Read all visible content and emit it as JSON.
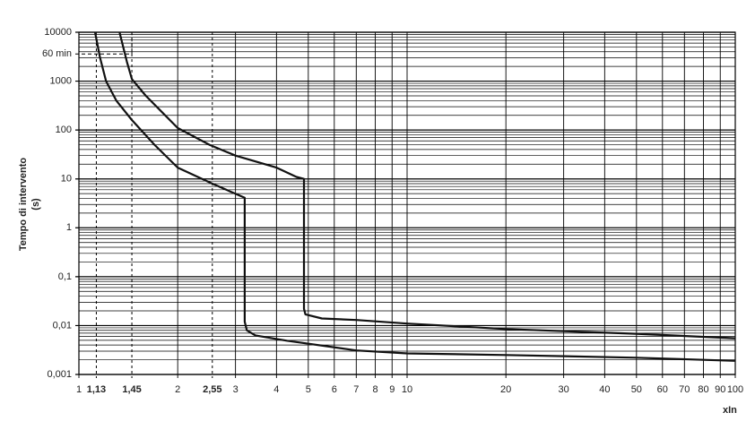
{
  "chart_data": {
    "type": "line",
    "xlabel": "xIn",
    "ylabel": [
      "Tempo di intervento",
      "(s)"
    ],
    "xscale": "log",
    "yscale": "log",
    "grid": true,
    "xlim": [
      1,
      100
    ],
    "ylim": [
      0.001,
      10000
    ],
    "xticks": [
      1,
      {
        "value": 1.13,
        "label": "1,13"
      },
      {
        "value": 1.45,
        "label": "1,45"
      },
      2,
      {
        "value": 2.55,
        "label": "2,55"
      },
      3,
      4,
      5,
      6,
      7,
      8,
      9,
      10,
      20,
      30,
      40,
      50,
      60,
      70,
      80,
      90,
      100
    ],
    "yticks": [
      {
        "value": 0.001,
        "label": "0,001"
      },
      {
        "value": 0.01,
        "label": "0,01"
      },
      {
        "value": 0.1,
        "label": "0,1"
      },
      1,
      10,
      100,
      1000,
      10000
    ],
    "annotations": [
      {
        "text": "60 min",
        "y": 3600,
        "x": 1.45
      }
    ],
    "series": [
      {
        "color": "#111111",
        "x": [
          1.33,
          1.4,
          1.45,
          1.6,
          2,
          2.5,
          3,
          4,
          4.6,
          4.85,
          4.85,
          4.9,
          5.5,
          7,
          10,
          20,
          50,
          100
        ],
        "values": [
          10000,
          2500,
          1100,
          500,
          110,
          50,
          30,
          17,
          11,
          10,
          0.022,
          0.017,
          0.014,
          0.013,
          0.011,
          0.0085,
          0.0068,
          0.0055
        ]
      },
      {
        "color": "#111111",
        "x": [
          1.12,
          1.16,
          1.21,
          1.3,
          1.45,
          1.7,
          2,
          2.55,
          3.2,
          3.2,
          3.25,
          3.45,
          4.3,
          7,
          10,
          20,
          50,
          100
        ],
        "values": [
          10000,
          3000,
          1000,
          400,
          160,
          50,
          17,
          8,
          4.1,
          0.012,
          0.008,
          0.0063,
          0.0049,
          0.0031,
          0.0027,
          0.0025,
          0.0022,
          0.0019
        ]
      }
    ]
  }
}
